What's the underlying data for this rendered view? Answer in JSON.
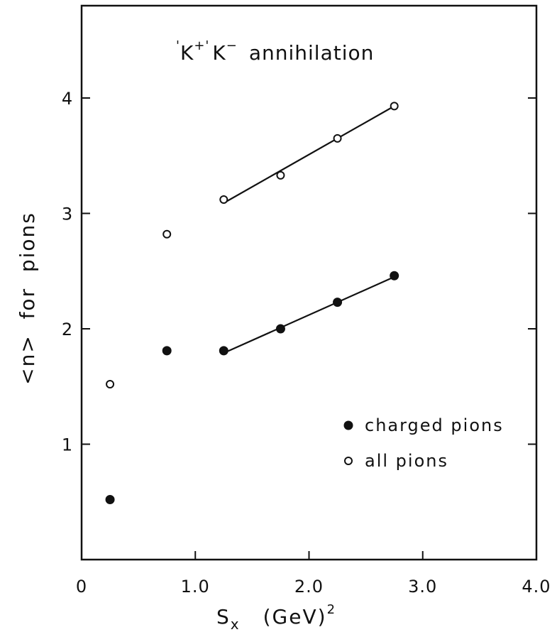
{
  "chart_data": {
    "type": "scatter",
    "title_prefix_1": "'",
    "title_k1": "K",
    "title_sup1": "+'",
    "title_k2": "K",
    "title_sup2": "−",
    "title_rest": "annihilation",
    "xlabel_main": "S",
    "xlabel_sub": "x",
    "xlabel_unit": "(GeV)",
    "xlabel_exp": "2",
    "ylabel": "<n>  for  pions",
    "xlim": [
      0,
      4.0
    ],
    "ylim": [
      0,
      4.8
    ],
    "x_ticks": [
      0,
      1.0,
      2.0,
      3.0,
      4.0
    ],
    "x_tick_labels": [
      "0",
      "1.0",
      "2.0",
      "3.0",
      "4.0"
    ],
    "y_ticks": [
      1,
      2,
      3,
      4
    ],
    "y_tick_labels": [
      "1",
      "2",
      "3",
      "4"
    ],
    "legend_position": "lower-right",
    "series": [
      {
        "name": "charged pions",
        "marker": "filled-circle",
        "x": [
          0.25,
          0.75,
          1.25,
          1.75,
          2.25,
          2.75
        ],
        "y": [
          0.52,
          1.81,
          1.81,
          2.0,
          2.23,
          2.46
        ],
        "fit_line": {
          "x": [
            1.25,
            2.75
          ],
          "y": [
            1.79,
            2.45
          ]
        }
      },
      {
        "name": "all pions",
        "marker": "open-circle",
        "x": [
          0.25,
          0.75,
          1.25,
          1.75,
          2.25,
          2.75
        ],
        "y": [
          1.52,
          2.82,
          3.12,
          3.33,
          3.65,
          3.93
        ],
        "fit_line": {
          "x": [
            1.25,
            2.75
          ],
          "y": [
            3.09,
            3.93
          ]
        }
      }
    ]
  }
}
